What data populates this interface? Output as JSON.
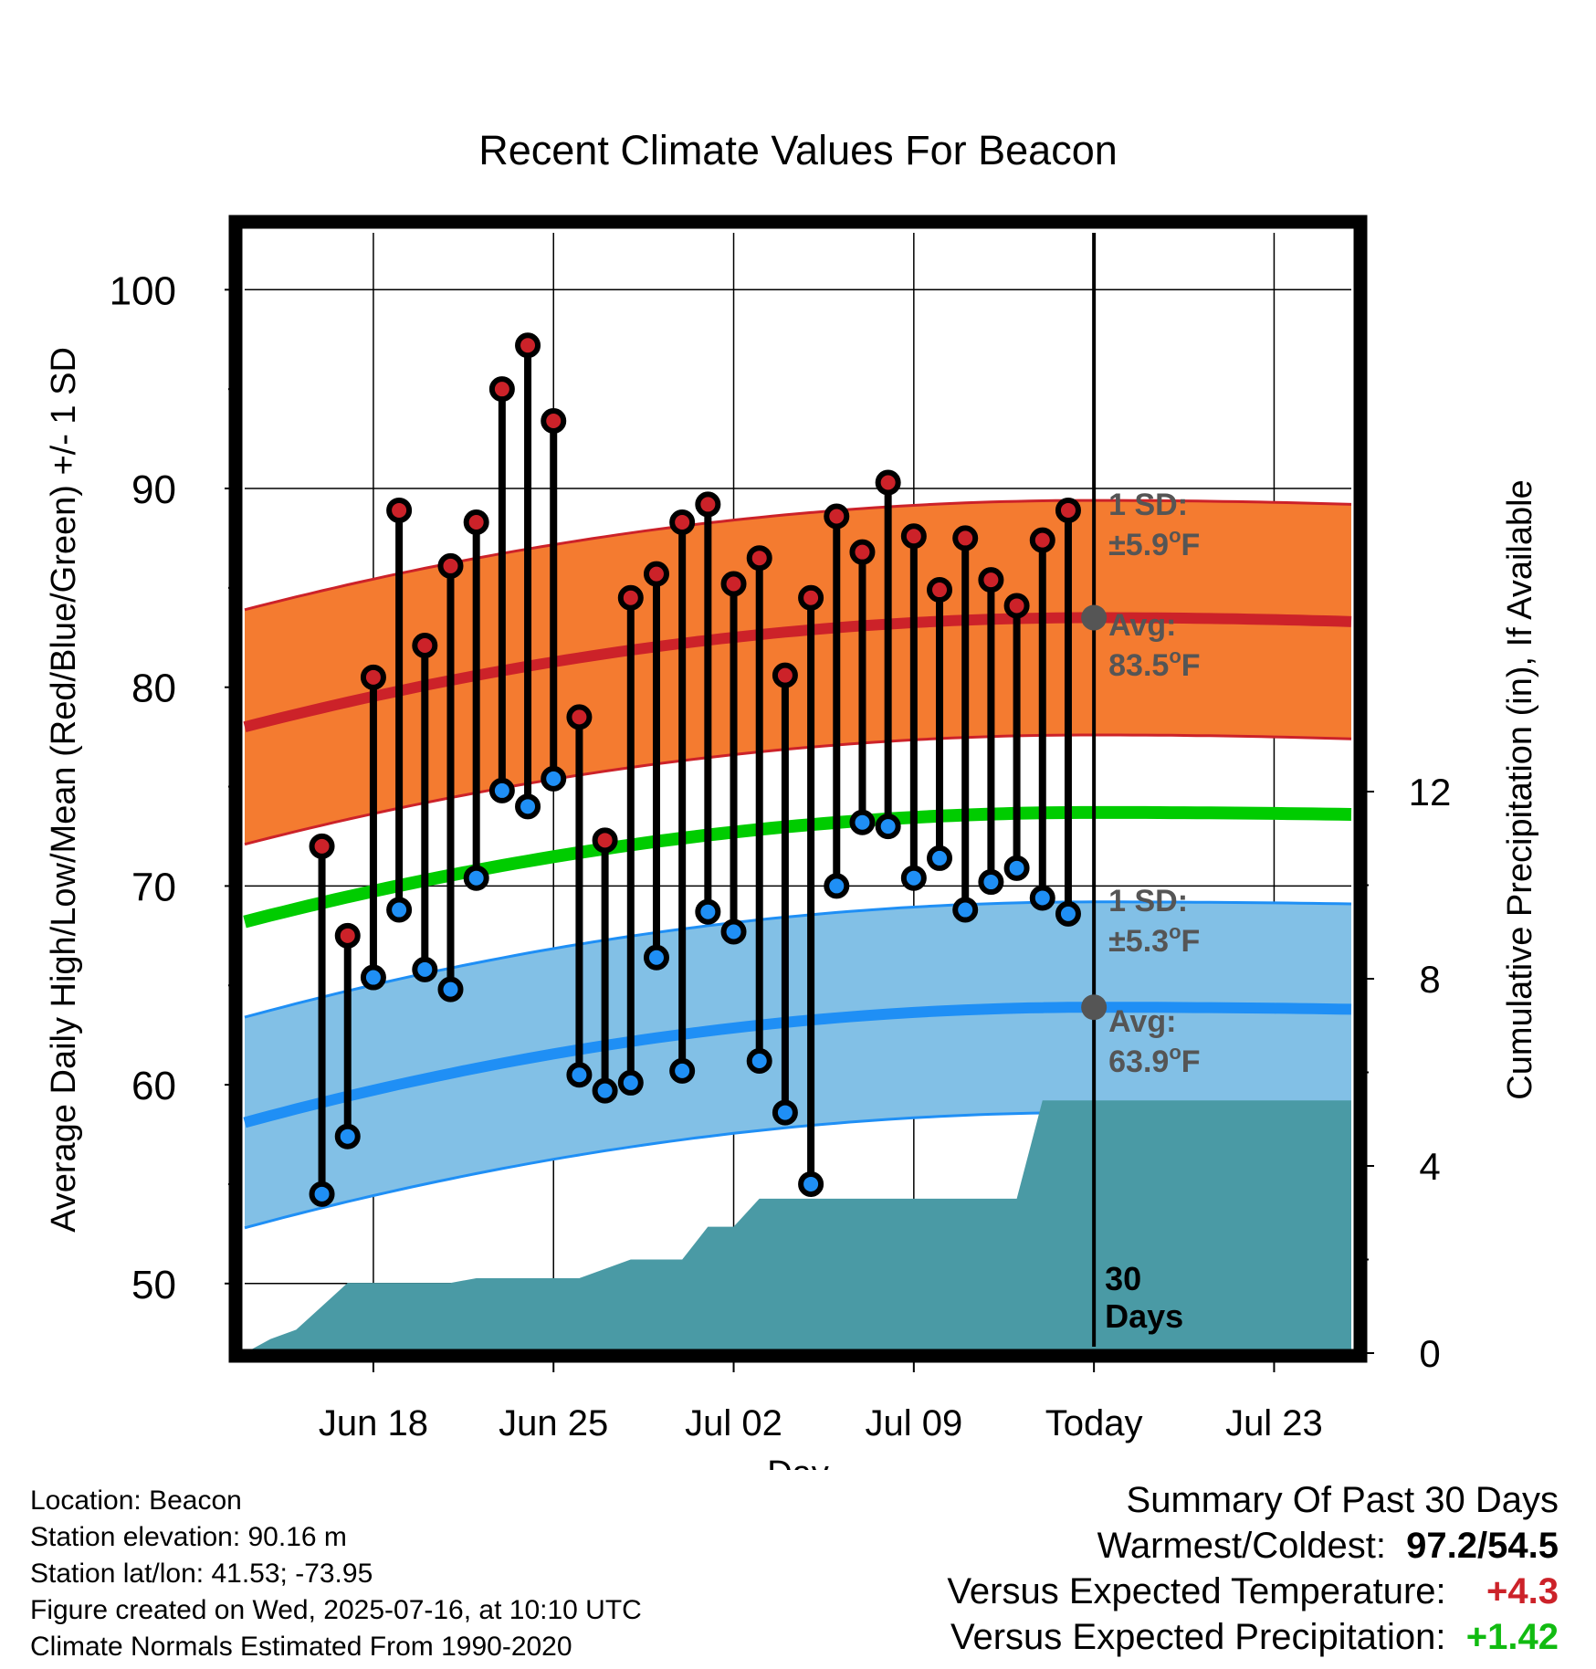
{
  "chart_data": {
    "type": "line",
    "title": "Recent Climate Values For Beacon",
    "xlabel": "Day",
    "ylabel": "Average Daily High/Low/Mean (Red/Blue/Green) +/- 1 SD",
    "ylabel2": "Cumulative Precipitation (in), If Available",
    "ylim": [
      46.5,
      103
    ],
    "y2lim": [
      0,
      24
    ],
    "yticks": [
      "50",
      "60",
      "70",
      "80",
      "90",
      "100"
    ],
    "y2ticks": [
      "0",
      "4",
      "8",
      "12"
    ],
    "xlim_days": [
      -33,
      10
    ],
    "xticks": [
      {
        "label": "Jun 18",
        "day": -28
      },
      {
        "label": "Jun 25",
        "day": -21
      },
      {
        "label": "Jul 02",
        "day": -14
      },
      {
        "label": "Jul 09",
        "day": -7
      },
      {
        "label": "Today",
        "day": 0
      },
      {
        "label": "Jul 23",
        "day": 7
      }
    ],
    "today_marker": {
      "label_line1": "30",
      "label_line2": "Days"
    },
    "daily_highs": [
      72.0,
      67.5,
      80.5,
      88.9,
      82.1,
      86.1,
      88.3,
      95.0,
      97.2,
      93.4,
      78.5,
      72.3,
      84.5,
      85.7,
      88.3,
      89.2,
      85.2,
      86.5,
      80.6,
      84.5,
      88.6,
      86.8,
      90.3,
      87.6,
      84.9,
      87.5,
      85.4,
      84.1,
      87.4,
      88.9
    ],
    "daily_lows": [
      54.5,
      57.4,
      65.4,
      68.8,
      65.8,
      64.8,
      70.4,
      74.8,
      74.0,
      75.4,
      60.5,
      59.7,
      60.1,
      66.4,
      60.7,
      68.7,
      67.7,
      61.2,
      58.6,
      55.0,
      70.0,
      73.2,
      73.0,
      70.4,
      71.4,
      68.8,
      70.2,
      70.9,
      69.4,
      68.6
    ],
    "normal_high": {
      "start": 78.0,
      "today": 83.5,
      "end": 83.3,
      "sd": 5.9
    },
    "normal_low": {
      "start": 58.1,
      "today": 63.9,
      "end": 63.8,
      "sd": 5.3
    },
    "normal_mean": {
      "start": 68.2,
      "today": 73.7,
      "end": 73.6
    },
    "cumulative_precip": [
      {
        "day": -33,
        "value": 0.0
      },
      {
        "day": -32,
        "value": 0.3
      },
      {
        "day": -31,
        "value": 0.5
      },
      {
        "day": -30,
        "value": 1.0
      },
      {
        "day": -29,
        "value": 1.5
      },
      {
        "day": -28,
        "value": 1.5
      },
      {
        "day": -25,
        "value": 1.5
      },
      {
        "day": -24,
        "value": 1.6
      },
      {
        "day": -20,
        "value": 1.6
      },
      {
        "day": -19,
        "value": 1.8
      },
      {
        "day": -18,
        "value": 2.0
      },
      {
        "day": -16,
        "value": 2.0
      },
      {
        "day": -15,
        "value": 2.7
      },
      {
        "day": -14,
        "value": 2.7
      },
      {
        "day": -13,
        "value": 3.3
      },
      {
        "day": -3,
        "value": 3.3
      },
      {
        "day": -2,
        "value": 5.4
      },
      {
        "day": 10,
        "value": 5.4
      }
    ],
    "annotations": {
      "high_sd_label": "1 SD:",
      "high_sd_value": "±5.9",
      "high_avg_label": "Avg:",
      "high_avg_value": "83.5",
      "low_sd_label": "1 SD:",
      "low_sd_value": "±5.3",
      "low_avg_label": "Avg:",
      "low_avg_value": "63.9",
      "deg_unit": "o",
      "f_unit": "F"
    },
    "grid": true,
    "colors": {
      "high": "#cc2229",
      "high_band": "#f47b30",
      "low": "#1f8ff5",
      "low_band": "#82c0e6",
      "mean": "#00cc00",
      "precip": "#4a9aa5",
      "annotation": "#555555"
    }
  },
  "footer": {
    "location": "Location: Beacon",
    "elevation": "Station elevation: 90.16 m",
    "latlon": "Station lat/lon: 41.53; -73.95",
    "created": "Figure created on Wed, 2025-07-16, at 10:10 UTC",
    "normals": "Climate Normals Estimated From 1990-2020"
  },
  "summary": {
    "title": "Summary Of Past 30 Days",
    "warm_cold_label": "Warmest/Coldest:",
    "warm_cold_value": "97.2/54.5",
    "temp_label": "Versus Expected Temperature:",
    "temp_value": "+4.3",
    "temp_color": "#cc2229",
    "precip_label": "Versus Expected Precipitation:",
    "precip_value": "+1.42",
    "precip_color": "#11bb11"
  }
}
